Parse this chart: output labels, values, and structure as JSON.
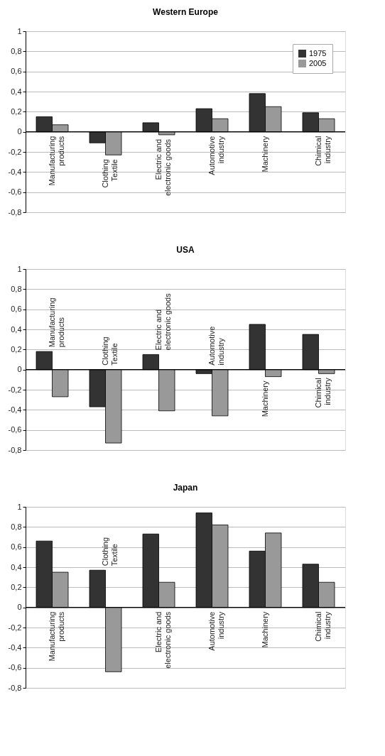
{
  "chart_data": [
    {
      "type": "bar",
      "title": "Western Europe",
      "categories": [
        "Manufacturing products",
        "Clothing Textile",
        "Electric and electronic goods",
        "Automotive industry",
        "Machinery",
        "Chimical industry"
      ],
      "series": [
        {
          "name": "1975",
          "color": "#333333",
          "values": [
            0.15,
            -0.11,
            0.09,
            0.23,
            0.38,
            0.19
          ]
        },
        {
          "name": "2005",
          "color": "#999999",
          "values": [
            0.07,
            -0.23,
            -0.03,
            0.13,
            0.25,
            0.13
          ]
        }
      ],
      "ylim": [
        -0.8,
        1
      ],
      "yticks": [
        {
          "value": -0.8,
          "label": "-0,8"
        },
        {
          "value": -0.6,
          "label": "-0,6"
        },
        {
          "value": -0.4,
          "label": "-0,4"
        },
        {
          "value": -0.2,
          "label": "-0,2"
        },
        0,
        {
          "value": 0.2,
          "label": "0,2"
        },
        {
          "value": 0.4,
          "label": "0,4"
        },
        {
          "value": 0.6,
          "label": "0,6"
        },
        {
          "value": 0.8,
          "label": "0,8"
        },
        1
      ],
      "grid": "y",
      "legend": "top right"
    },
    {
      "type": "bar",
      "title": "USA",
      "categories": [
        "Manufacturing products",
        "Clothing Textile",
        "Electric and electronic goods",
        "Automotive industry",
        "Machinery",
        "Chimical industry"
      ],
      "series": [
        {
          "name": "1975",
          "color": "#333333",
          "values": [
            0.18,
            -0.37,
            0.15,
            -0.04,
            0.45,
            0.35
          ]
        },
        {
          "name": "2005",
          "color": "#999999",
          "values": [
            -0.27,
            -0.73,
            -0.41,
            -0.46,
            -0.07,
            -0.04
          ]
        }
      ],
      "ylim": [
        -0.8,
        1
      ],
      "yticks": [
        {
          "value": -0.8,
          "label": "-0,8"
        },
        {
          "value": -0.6,
          "label": "-0,6"
        },
        {
          "value": -0.4,
          "label": "-0,4"
        },
        {
          "value": -0.2,
          "label": "-0,2"
        },
        0,
        {
          "value": 0.2,
          "label": "0,2"
        },
        {
          "value": 0.4,
          "label": "0,4"
        },
        {
          "value": 0.6,
          "label": "0,6"
        },
        {
          "value": 0.8,
          "label": "0,8"
        },
        1
      ],
      "grid": "y",
      "legend": "top right"
    },
    {
      "type": "bar",
      "title": "Japan",
      "categories": [
        "Manufacturing products",
        "Clothing Textile",
        "Electric and electronic goods",
        "Automotive industry",
        "Machinery",
        "Chimical industry"
      ],
      "series": [
        {
          "name": "1975",
          "color": "#333333",
          "values": [
            0.66,
            0.37,
            0.73,
            0.94,
            0.56,
            0.43
          ]
        },
        {
          "name": "2005",
          "color": "#999999",
          "values": [
            0.35,
            -0.64,
            0.25,
            0.82,
            0.74,
            0.25
          ]
        }
      ],
      "ylim": [
        -0.8,
        1
      ],
      "yticks": [
        {
          "value": -0.8,
          "label": "-0,8"
        },
        {
          "value": -0.6,
          "label": "-0,6"
        },
        {
          "value": -0.4,
          "label": "-0,4"
        },
        {
          "value": -0.2,
          "label": "-0,2"
        },
        0,
        {
          "value": 0.2,
          "label": "0,2"
        },
        {
          "value": 0.4,
          "label": "0,4"
        },
        {
          "value": 0.6,
          "label": "0,6"
        },
        {
          "value": 0.8,
          "label": "0,8"
        },
        1
      ],
      "grid": "y",
      "legend": "top right"
    }
  ]
}
